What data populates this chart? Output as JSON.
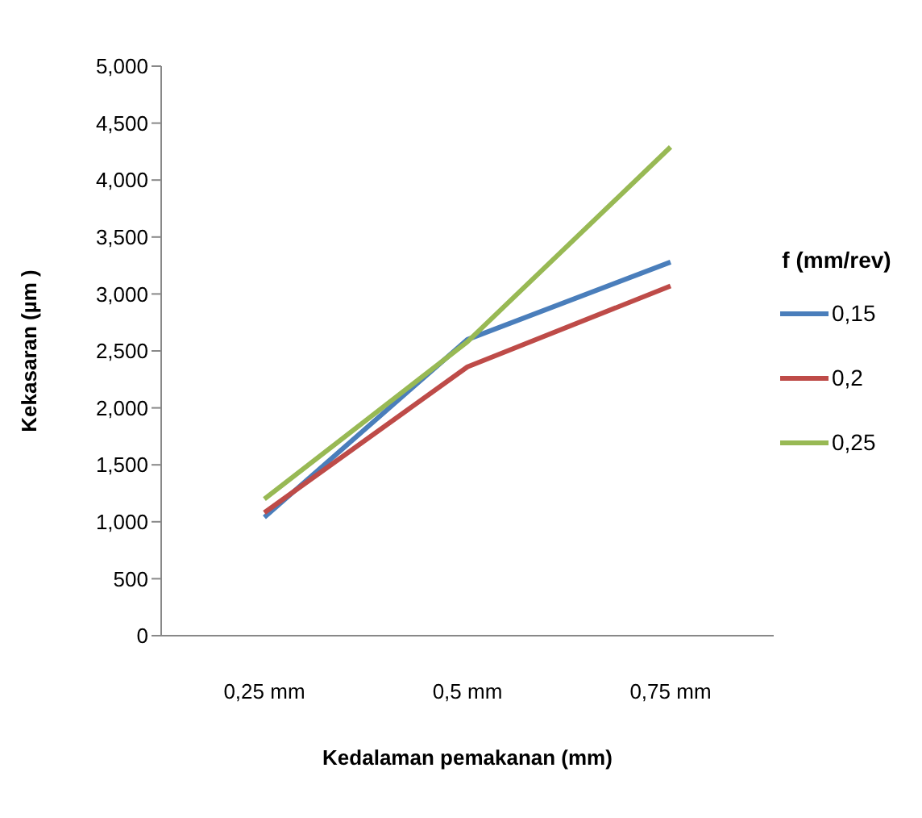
{
  "chart_data": {
    "type": "line",
    "xlabel": "Kedalaman pemakanan (mm)",
    "ylabel": "Kekasaran  (µm )",
    "legend_title": "f (mm/rev)",
    "categories": [
      "0,25 mm",
      "0,5 mm",
      "0,75 mm"
    ],
    "series": [
      {
        "name": "0,15",
        "color": "#4a7ebb",
        "values": [
          1040,
          2600,
          3280
        ]
      },
      {
        "name": "0,2",
        "color": "#be4b48",
        "values": [
          1080,
          2360,
          3070
        ]
      },
      {
        "name": "0,25",
        "color": "#98b954",
        "values": [
          1200,
          2580,
          4290
        ]
      }
    ],
    "ylim": [
      0,
      5000
    ],
    "yticks": [
      {
        "value": 0,
        "label": "0"
      },
      {
        "value": 500,
        "label": "500"
      },
      {
        "value": 1000,
        "label": "1,000"
      },
      {
        "value": 1500,
        "label": "1,500"
      },
      {
        "value": 2000,
        "label": "2,000"
      },
      {
        "value": 2500,
        "label": "2,500"
      },
      {
        "value": 3000,
        "label": "3,000"
      },
      {
        "value": 3500,
        "label": "3,500"
      },
      {
        "value": 4000,
        "label": "4,000"
      },
      {
        "value": 4500,
        "label": "4,500"
      },
      {
        "value": 5000,
        "label": "5,000"
      }
    ],
    "grid": false,
    "legend": "right",
    "marker": "none",
    "line_style": "solid"
  }
}
